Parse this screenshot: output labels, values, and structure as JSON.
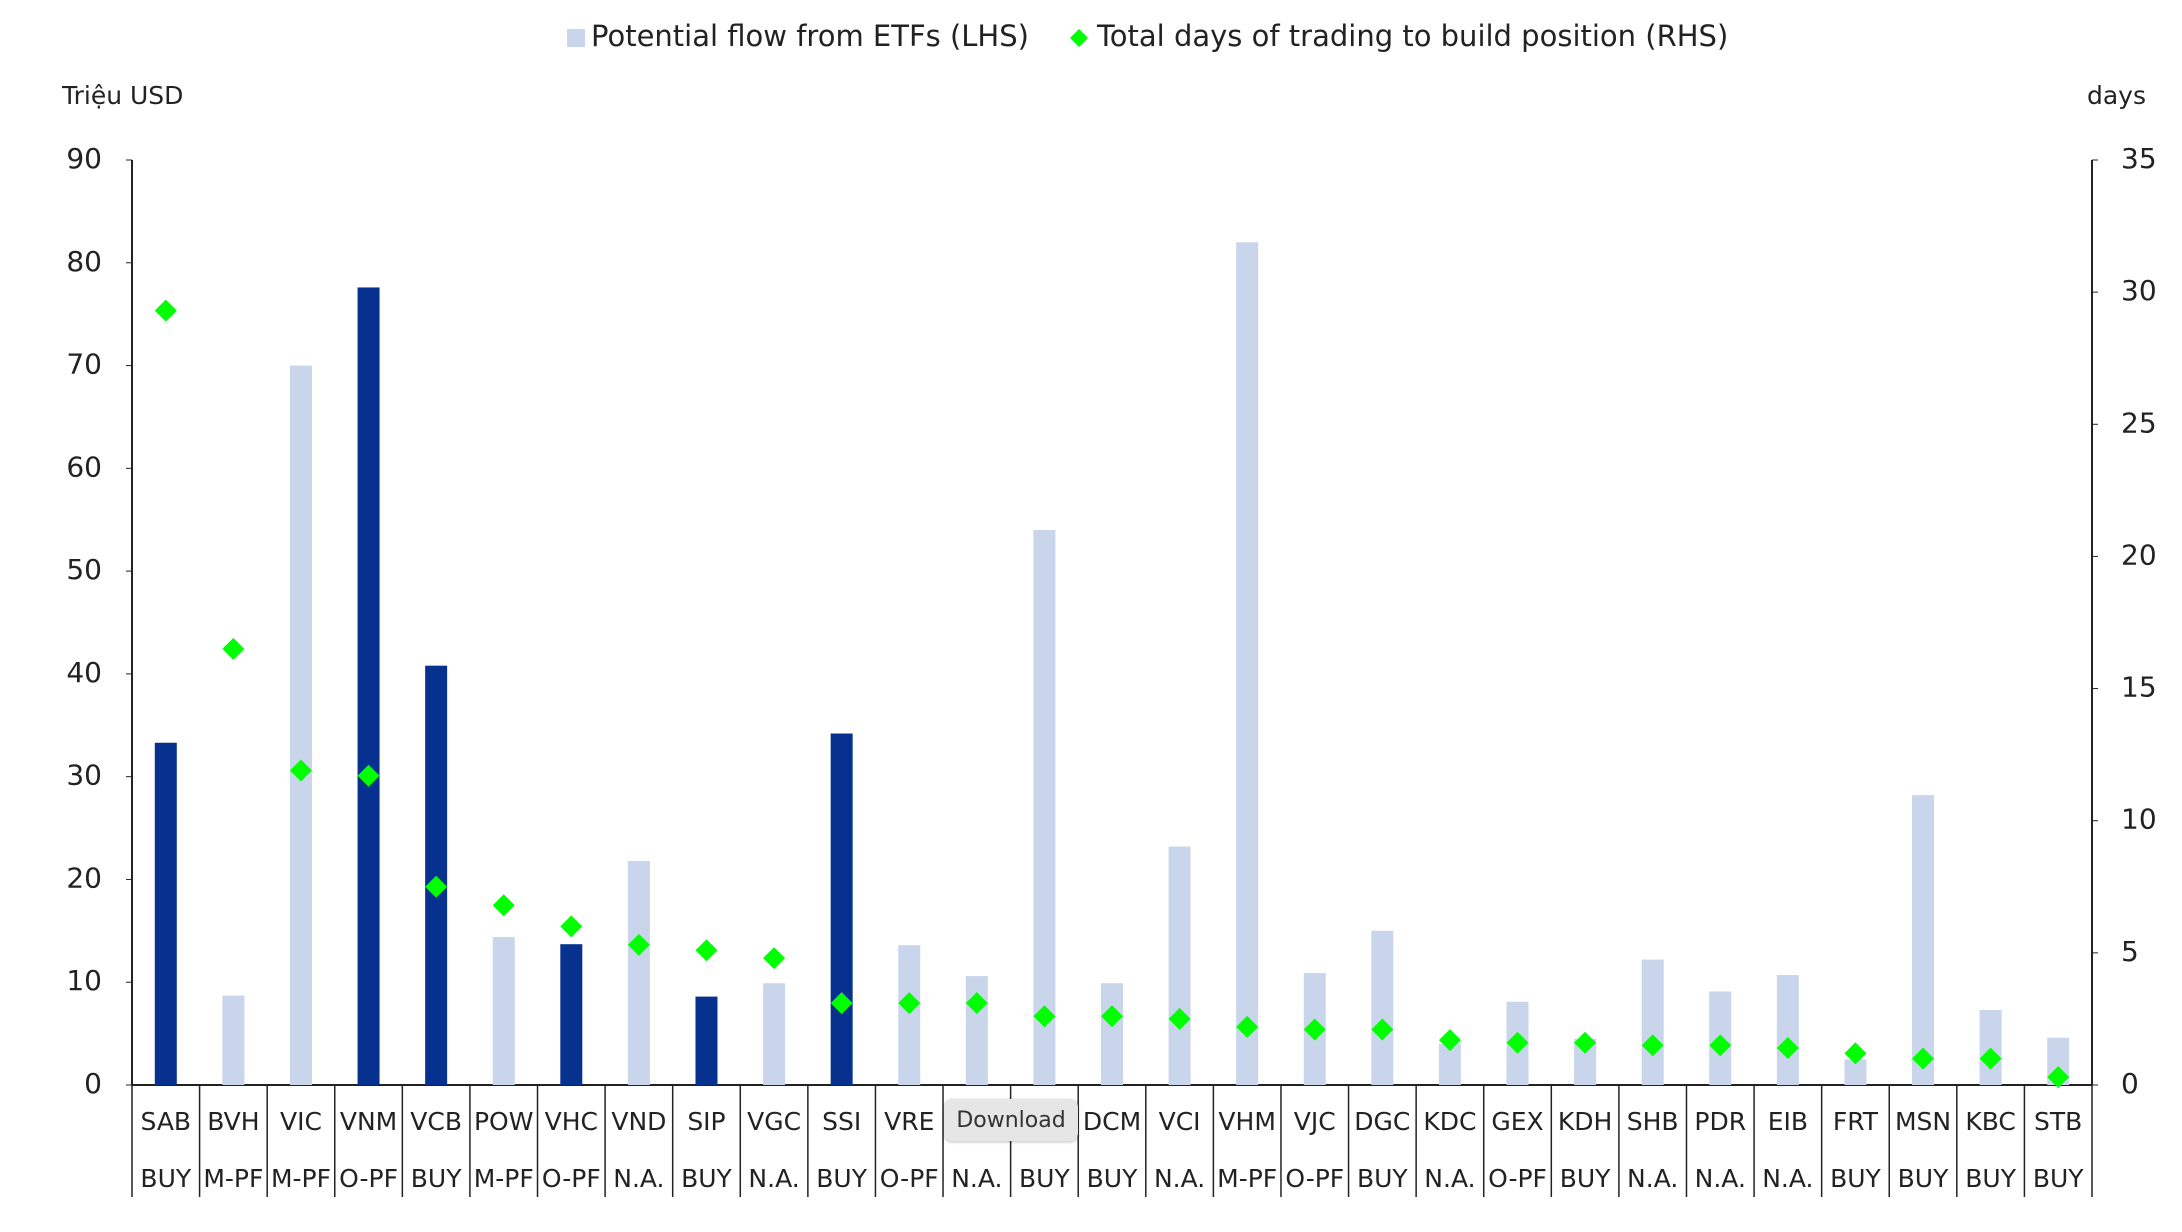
{
  "chart_data": {
    "type": "bar",
    "yaxis_label": "Triệu USD",
    "y2axis_label": "days",
    "categories": [
      "SAB",
      "BVH",
      "VIC",
      "VNM",
      "VCB",
      "POW",
      "VHC",
      "VND",
      "SIP",
      "VGC",
      "SSI",
      "VRE",
      null,
      null,
      "DCM",
      "VCI",
      "VHM",
      "VJC",
      "DGC",
      "KDC",
      "GEX",
      "KDH",
      "SHB",
      "PDR",
      "EIB",
      "FRT",
      "MSN",
      "KBC",
      "STB"
    ],
    "ratings": [
      "BUY",
      "M-PF",
      "M-PF",
      "O-PF",
      "BUY",
      "M-PF",
      "O-PF",
      "N.A.",
      "BUY",
      "N.A.",
      "BUY",
      "O-PF",
      "N.A.",
      "BUY",
      "BUY",
      "N.A.",
      "M-PF",
      "O-PF",
      "BUY",
      "N.A.",
      "O-PF",
      "BUY",
      "N.A.",
      "N.A.",
      "N.A.",
      "BUY",
      "BUY",
      "BUY",
      "BUY"
    ],
    "series": [
      {
        "name": "Potential flow from ETFs (LHS)",
        "type": "bar",
        "color": "#c9d5ea",
        "colors": [
          "#06318f",
          "#c9d5ea",
          "#c9d5ea",
          "#06318f",
          "#06318f",
          "#c9d5ea",
          "#06318f",
          "#c9d5ea",
          "#06318f",
          "#c9d5ea",
          "#06318f",
          "#c9d5ea",
          "#c9d5ea",
          "#c9d5ea",
          "#c9d5ea",
          "#c9d5ea",
          "#c9d5ea",
          "#c9d5ea",
          "#c9d5ea",
          "#c9d5ea",
          "#c9d5ea",
          "#c9d5ea",
          "#c9d5ea",
          "#c9d5ea",
          "#c9d5ea",
          "#c9d5ea",
          "#c9d5ea",
          "#c9d5ea",
          "#c9d5ea"
        ],
        "values": [
          33.3,
          8.7,
          70,
          77.6,
          40.8,
          14.4,
          13.7,
          21.8,
          8.6,
          9.9,
          34.2,
          13.6,
          10.6,
          54,
          9.9,
          23.2,
          82,
          10.9,
          15,
          4,
          8.1,
          4.5,
          12.2,
          9.1,
          10.7,
          2.5,
          28.2,
          7.3,
          4.6
        ]
      },
      {
        "name": "Total days of trading to build position (RHS)",
        "type": "scatter",
        "axis": "y2",
        "color": "#00ff00",
        "values": [
          29.3,
          16.5,
          11.9,
          11.7,
          7.5,
          6.8,
          6.0,
          5.3,
          5.1,
          4.8,
          3.1,
          3.1,
          3.1,
          2.6,
          2.6,
          2.5,
          2.2,
          2.1,
          2.1,
          1.7,
          1.6,
          1.6,
          1.5,
          1.5,
          1.4,
          1.2,
          1.0,
          1.0,
          0.3
        ]
      }
    ],
    "ylim": [
      0,
      90
    ],
    "yticks": [
      0,
      10,
      20,
      30,
      40,
      50,
      60,
      70,
      80,
      90
    ],
    "y2lim": [
      0,
      35
    ],
    "y2ticks": [
      0,
      5,
      10,
      15,
      20,
      25,
      30,
      35
    ],
    "legend": "top",
    "grid": false
  },
  "button": "Download"
}
